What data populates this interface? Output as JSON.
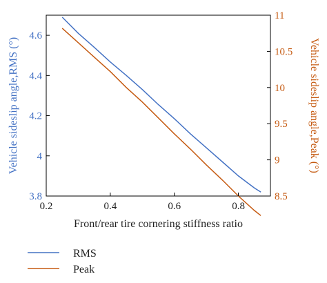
{
  "chart_data": {
    "type": "line",
    "xlabel": "Front/rear tire cornering stiffness ratio",
    "ylabel_left": "Vehicle sideslip angle,RMS (°)",
    "ylabel_right": "Vehicle sideslip angle,Peak (°)",
    "xlim": [
      0.2,
      0.9
    ],
    "ylim_left": [
      3.8,
      4.7
    ],
    "ylim_right": [
      8.5,
      11
    ],
    "x_ticks": [
      "0.2",
      "0.4",
      "0.6",
      "0.8"
    ],
    "y_left_ticks": [
      "3.8",
      "4",
      "4.2",
      "4.4",
      "4.6"
    ],
    "y_right_ticks": [
      "8.5",
      "9",
      "9.5",
      "10",
      "10.5",
      "11"
    ],
    "grid": false,
    "legend": "below-left",
    "series": [
      {
        "name": "RMS",
        "axis": "left",
        "color": "#4472C4",
        "x": [
          0.25,
          0.3,
          0.35,
          0.4,
          0.45,
          0.5,
          0.55,
          0.6,
          0.65,
          0.7,
          0.75,
          0.8,
          0.85,
          0.87
        ],
        "y": [
          4.69,
          4.61,
          4.54,
          4.467,
          4.4,
          4.33,
          4.255,
          4.185,
          4.11,
          4.04,
          3.97,
          3.9,
          3.84,
          3.82
        ]
      },
      {
        "name": "Peak",
        "axis": "right",
        "color": "#C55A11",
        "x": [
          0.25,
          0.3,
          0.35,
          0.4,
          0.45,
          0.5,
          0.55,
          0.6,
          0.65,
          0.7,
          0.75,
          0.8,
          0.85,
          0.87
        ],
        "y": [
          10.82,
          10.62,
          10.42,
          10.22,
          10.0,
          9.8,
          9.58,
          9.36,
          9.15,
          8.93,
          8.72,
          8.5,
          8.3,
          8.23
        ]
      }
    ]
  }
}
